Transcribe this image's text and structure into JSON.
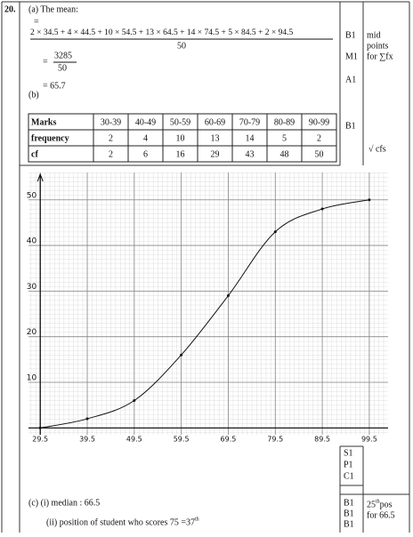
{
  "question_number": "20.",
  "part_a": {
    "label": "(a) The mean:",
    "eq1": "=",
    "numerator": "2 × 34.5 + 4 × 44.5 + 10 × 54.5 + 13 × 64.5 + 14 × 74.5 + 5 × 84.5 + 2 × 94.5",
    "denominator": "50",
    "eq2": "=",
    "numerator2": "3285",
    "denominator2": "50",
    "result": "= 65.7"
  },
  "part_b_label": "(b)",
  "table": {
    "rows": [
      [
        "Marks",
        "30-39",
        "40-49",
        "50-59",
        "60-69",
        "70-79",
        "80-89",
        "90-99"
      ],
      [
        "frequency",
        "2",
        "4",
        "10",
        "13",
        "14",
        "5",
        "2"
      ],
      [
        "cf",
        "2",
        "6",
        "16",
        "29",
        "43",
        "48",
        "50"
      ]
    ]
  },
  "graph": {
    "x": [
      29.5,
      39.5,
      49.5,
      59.5,
      69.5,
      79.5,
      89.5,
      99.5
    ],
    "y": [
      0,
      2,
      6,
      16,
      29,
      43,
      48,
      50
    ],
    "xlim": [
      27,
      103.5
    ],
    "ylim": [
      -1.5,
      56
    ],
    "xticks": [
      29.5,
      39.5,
      49.5,
      59.5,
      69.5,
      79.5,
      89.5,
      99.5
    ],
    "yticks": [
      10,
      20,
      30,
      40,
      50
    ]
  },
  "part_c": {
    "i": "(c) (i) median : 66.5",
    "ii": "(ii) position of student who scores 75 = ",
    "ii_value": "37",
    "ii_sup": "th"
  },
  "marks": {
    "a": [
      "B1",
      "M1",
      "A1"
    ],
    "b": "B1",
    "graph": [
      "S1",
      "P1",
      "C1"
    ],
    "c": [
      "B1",
      "B1",
      "B1"
    ]
  },
  "notes": {
    "a": [
      "mid",
      "points",
      "for ∑fx"
    ],
    "b": "√ cfs",
    "c1": "25",
    "c1_sup": "th",
    "c1_rest": " pos",
    "c2": "for 66.5"
  }
}
